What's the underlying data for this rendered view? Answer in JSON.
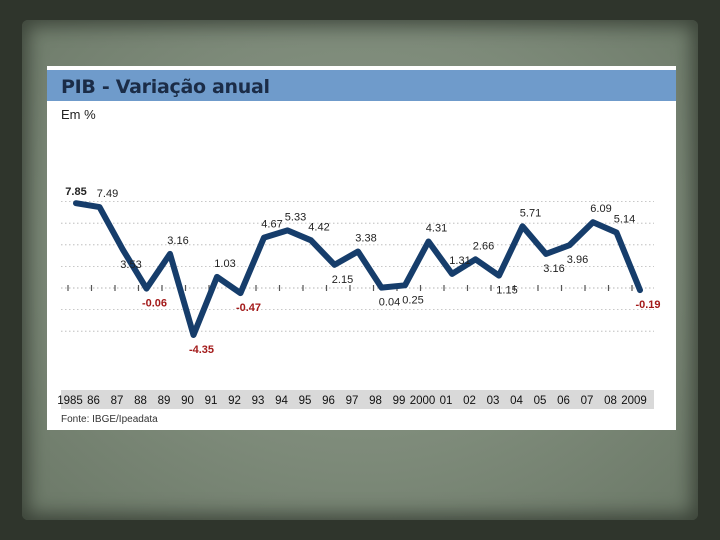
{
  "chart_data": {
    "type": "line",
    "title": "PIB - Variação anual",
    "unit_label": "Em %",
    "source": "Fonte: IBGE/Ipeadata",
    "categories": [
      "1985",
      "86",
      "87",
      "88",
      "89",
      "90",
      "91",
      "92",
      "93",
      "94",
      "95",
      "96",
      "97",
      "98",
      "99",
      "2000",
      "01",
      "02",
      "03",
      "04",
      "05",
      "06",
      "07",
      "08",
      "2009"
    ],
    "series": [
      {
        "values": [
          7.85,
          7.49,
          3.53,
          -0.06,
          3.16,
          -4.35,
          1.03,
          -0.47,
          4.67,
          5.33,
          4.42,
          2.15,
          3.38,
          0.04,
          0.25,
          4.31,
          1.31,
          2.66,
          1.15,
          5.71,
          3.16,
          3.96,
          6.09,
          5.14,
          -0.19
        ],
        "labels": [
          "7.85",
          "7.49",
          "3.53",
          "-0.06",
          "3.16",
          "-4.35",
          "1.03",
          "-0.47",
          "4.67",
          "5.33",
          "4.42",
          "2.15",
          "3.38",
          "0.04",
          "0.25",
          "4.31",
          "1.31",
          "2.66",
          "1.15",
          "5.71",
          "3.16",
          "3.96",
          "6.09",
          "5.14",
          "-0.19"
        ]
      }
    ],
    "ylim": [
      -5,
      9
    ],
    "grid": "horizontal-dotted",
    "colors": {
      "line": "#163d6b",
      "negative_label": "#a31a1a",
      "positive_label": "#222222",
      "title_bar": "#6f9bcb",
      "axis_bar": "#d9d9d9"
    }
  }
}
